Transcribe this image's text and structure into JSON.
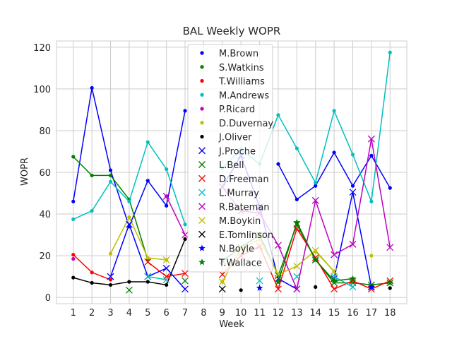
{
  "chart_data": {
    "type": "line",
    "title": "BAL Weekly WOPR",
    "xlabel": "Week",
    "ylabel": "WOPR",
    "x": [
      1,
      2,
      3,
      4,
      5,
      6,
      7,
      8,
      9,
      10,
      11,
      12,
      13,
      14,
      15,
      16,
      17,
      18
    ],
    "xlim": [
      0.1,
      18.9
    ],
    "ylim": [
      -3,
      123
    ],
    "yticks": [
      0,
      20,
      40,
      60,
      80,
      100,
      120
    ],
    "grid": true,
    "legend_position": "upper-center",
    "series": [
      {
        "name": "M.Brown",
        "color": "#0000ff",
        "marker": "dot",
        "values": [
          46,
          100.5,
          61,
          34,
          56,
          44,
          89.5,
          null,
          null,
          null,
          null,
          64,
          47,
          53.5,
          69.5,
          53.5,
          68,
          52.5
        ]
      },
      {
        "name": "S.Watkins",
        "color": "#008000",
        "marker": "dot",
        "values": [
          67.5,
          58.5,
          58.5,
          47,
          18,
          null,
          null,
          null,
          null,
          null,
          null,
          null,
          null,
          null,
          null,
          null,
          null,
          null
        ]
      },
      {
        "name": "T.Williams",
        "color": "#ff0000",
        "marker": "dot",
        "values": [
          20.5,
          12,
          8.5,
          null,
          null,
          null,
          null,
          null,
          null,
          null,
          null,
          null,
          null,
          null,
          null,
          null,
          null,
          null
        ]
      },
      {
        "name": "M.Andrews",
        "color": "#00bfbf",
        "marker": "dot",
        "values": [
          37.5,
          41.5,
          55.5,
          46,
          74.5,
          61.5,
          35,
          null,
          62,
          71,
          64,
          87.5,
          71.5,
          55,
          89.5,
          68.5,
          46,
          117.5
        ]
      },
      {
        "name": "P.Ricard",
        "color": "#bf00bf",
        "marker": "dot",
        "values": [
          18.5,
          null,
          null,
          null,
          null,
          48.5,
          null,
          null,
          null,
          null,
          null,
          null,
          null,
          null,
          null,
          null,
          null,
          null
        ]
      },
      {
        "name": "D.Duvernay",
        "color": "#bfbf00",
        "marker": "dot",
        "values": [
          null,
          null,
          21,
          38.5,
          19,
          18,
          null,
          null,
          7.5,
          null,
          null,
          null,
          null,
          22,
          12.5,
          null,
          20,
          null
        ]
      },
      {
        "name": "J.Oliver",
        "color": "#000000",
        "marker": "dot",
        "values": [
          9.5,
          7,
          6,
          7.5,
          7.5,
          6,
          28,
          null,
          null,
          3.5,
          null,
          null,
          null,
          5,
          null,
          null,
          null,
          4.5
        ]
      },
      {
        "name": "J.Proche",
        "color": "#0000ff",
        "marker": "x",
        "values": [
          null,
          null,
          10,
          35,
          10,
          14,
          4,
          null,
          53,
          68,
          43.5,
          9,
          4,
          null,
          9,
          50.5,
          5,
          null
        ]
      },
      {
        "name": "L.Bell",
        "color": "#008000",
        "marker": "x",
        "values": [
          null,
          null,
          null,
          3.5,
          null,
          null,
          8,
          null,
          17.5,
          24,
          30,
          10.5,
          35,
          18,
          7,
          7,
          6,
          7
        ]
      },
      {
        "name": "D.Freeman",
        "color": "#ff0000",
        "marker": "x",
        "values": [
          null,
          null,
          null,
          null,
          17,
          10,
          11.5,
          null,
          11,
          20,
          24.5,
          4,
          33,
          19,
          4,
          8,
          4,
          8
        ]
      },
      {
        "name": "L.Murray",
        "color": "#00bfbf",
        "marker": "x",
        "values": [
          null,
          null,
          null,
          null,
          10,
          8.5,
          null,
          null,
          null,
          null,
          8,
          null,
          10,
          null,
          10,
          5,
          null,
          null
        ]
      },
      {
        "name": "R.Bateman",
        "color": "#bf00bf",
        "marker": "x",
        "values": [
          null,
          null,
          null,
          null,
          null,
          48.5,
          30,
          null,
          53,
          41.5,
          40.5,
          25,
          4,
          46.5,
          20.5,
          25.5,
          76,
          24
        ]
      },
      {
        "name": "M.Boykin",
        "color": "#bfbf00",
        "marker": "x",
        "values": [
          null,
          null,
          null,
          null,
          null,
          18,
          null,
          null,
          7.5,
          23.5,
          28,
          11,
          15,
          22.5,
          12.5,
          null,
          null,
          null
        ]
      },
      {
        "name": "E.Tomlinson",
        "color": "#000000",
        "marker": "x",
        "values": [
          null,
          null,
          null,
          null,
          null,
          null,
          null,
          null,
          4,
          null,
          null,
          null,
          null,
          null,
          null,
          null,
          null,
          null
        ]
      },
      {
        "name": "N.Boyle",
        "color": "#0000ff",
        "marker": "star",
        "values": [
          null,
          null,
          null,
          null,
          null,
          null,
          null,
          null,
          null,
          null,
          4.5,
          null,
          null,
          null,
          null,
          null,
          5,
          null
        ]
      },
      {
        "name": "T.Wallace",
        "color": "#008000",
        "marker": "star",
        "values": [
          null,
          null,
          null,
          null,
          null,
          null,
          null,
          null,
          null,
          null,
          null,
          7.5,
          36,
          18,
          8,
          9,
          null,
          7
        ]
      }
    ]
  }
}
